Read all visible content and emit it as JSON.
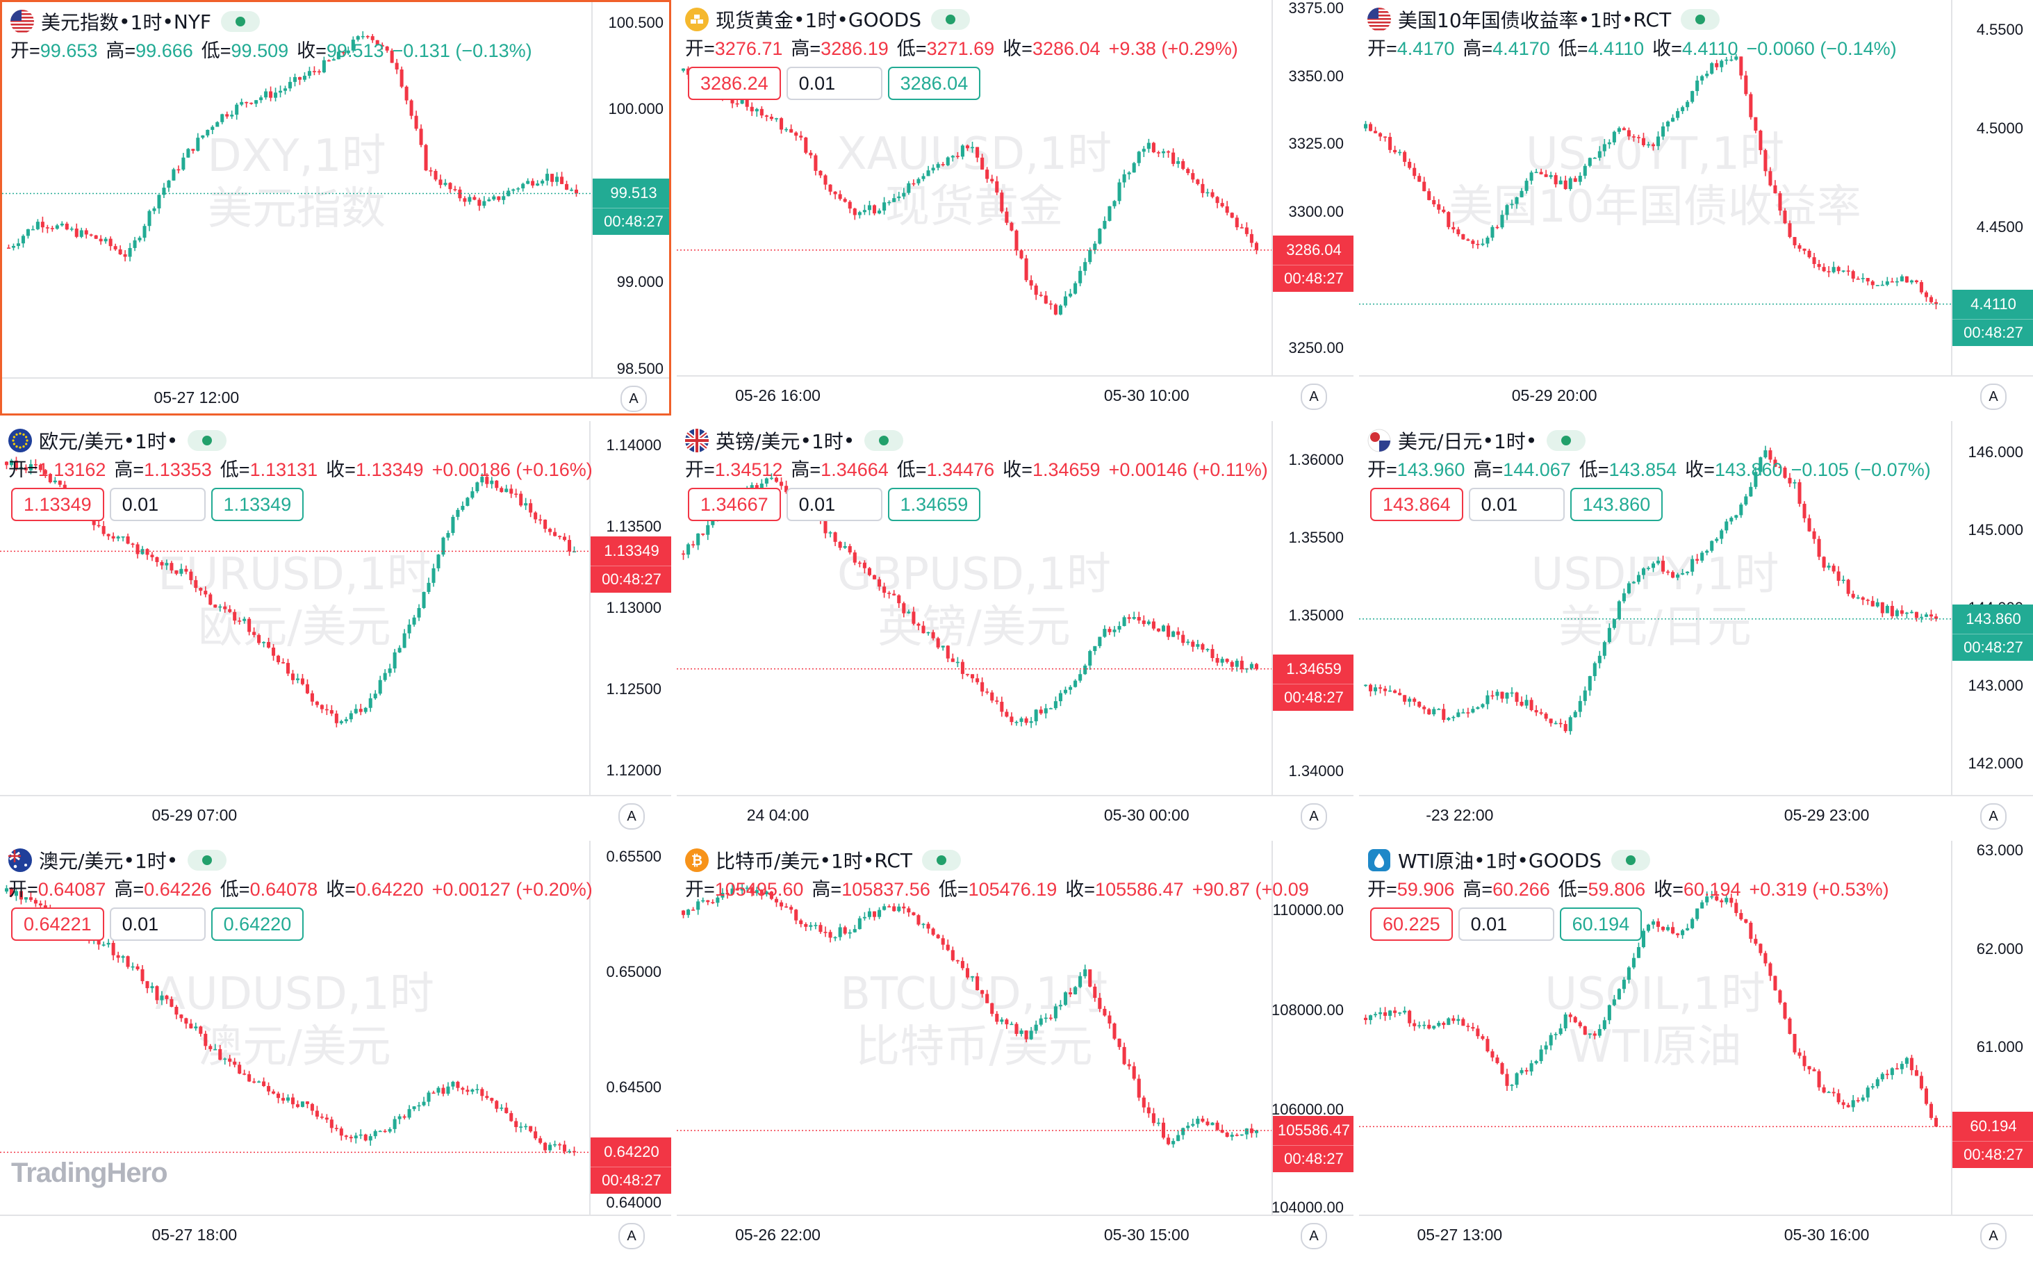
{
  "brand": "TradingHero",
  "colors": {
    "up": "#22ab94",
    "down": "#f23645",
    "active_border": "#f0602a"
  },
  "auto_label": "A",
  "ohlc_labels": {
    "open": "开=",
    "high": "高=",
    "low": "低=",
    "close": "收="
  },
  "panels": [
    {
      "symbol": "美元指数",
      "interval": "1时",
      "exchange": "NYF",
      "flag": "us-flag-icon",
      "ohlc": {
        "open": "99.653",
        "high": "99.666",
        "low": "99.509",
        "close": "99.513",
        "change": "−0.131 (−0.13%)"
      },
      "direction": "down",
      "ohlc_color": "up",
      "show_orders": false,
      "watermark": [
        "DXY,1时",
        "美元指数"
      ],
      "y_ticks": [
        "100.500",
        "100.000",
        "99.000",
        "98.500"
      ],
      "x_ticks": [
        "05-27 12:00"
      ],
      "price": "99.513",
      "countdown": "00:48:27",
      "tag_color": "up",
      "range": [
        98.45,
        100.62
      ],
      "trend": [
        99.2,
        99.35,
        99.3,
        99.25,
        99.15,
        99.5,
        99.75,
        99.95,
        100.05,
        100.1,
        100.2,
        100.3,
        100.45,
        100.25,
        99.65,
        99.5,
        99.45,
        99.55,
        99.62,
        99.51
      ],
      "active": true
    },
    {
      "symbol": "现货黄金",
      "interval": "1时",
      "exchange": "GOODS",
      "flag": "gold-coin-icon",
      "ohlc": {
        "open": "3276.71",
        "high": "3286.19",
        "low": "3271.69",
        "close": "3286.04",
        "change": "+9.38 (+0.29%)"
      },
      "direction": "up",
      "ohlc_color": "down",
      "show_orders": true,
      "sell": "3286.24",
      "qty": "0.01",
      "buy": "3286.04",
      "watermark": [
        "XAUUSD,1时",
        "现货黄金"
      ],
      "y_ticks": [
        "3375.00",
        "3350.00",
        "3325.00",
        "3300.00",
        "3250.00"
      ],
      "x_ticks": [
        "05-26 16:00",
        "05-30 10:00"
      ],
      "price": "3286.04",
      "countdown": "00:48:27",
      "tag_color": "down",
      "range": [
        3240,
        3378
      ],
      "trend": [
        3352,
        3345,
        3340,
        3335,
        3328,
        3310,
        3300,
        3302,
        3310,
        3318,
        3325,
        3305,
        3275,
        3262,
        3280,
        3305,
        3325,
        3320,
        3310,
        3298,
        3287
      ],
      "active": false
    },
    {
      "symbol": "美国10年国债收益率",
      "interval": "1时",
      "exchange": "RCT",
      "flag": "us-flag-icon",
      "ohlc": {
        "open": "4.4170",
        "high": "4.4170",
        "low": "4.4110",
        "close": "4.4110",
        "change": "−0.0060 (−0.14%)"
      },
      "direction": "down",
      "ohlc_color": "up",
      "show_orders": false,
      "watermark": [
        "US10YT,1时",
        "美国10年国债收益率"
      ],
      "y_ticks": [
        "4.5500",
        "4.5000",
        "4.4500",
        "4.4000"
      ],
      "x_ticks": [
        "05-29 20:00"
      ],
      "price": "4.4110",
      "countdown": "00:48:27",
      "tag_color": "up",
      "range": [
        4.375,
        4.565
      ],
      "trend": [
        4.5,
        4.49,
        4.47,
        4.45,
        4.44,
        4.46,
        4.48,
        4.47,
        4.485,
        4.5,
        4.49,
        4.51,
        4.53,
        4.535,
        4.48,
        4.44,
        4.43,
        4.425,
        4.42,
        4.424,
        4.411
      ],
      "active": false
    },
    {
      "symbol": "欧元/美元",
      "interval": "1时",
      "exchange": "",
      "flag": "eu-flag-icon",
      "ohlc": {
        "open": "1.13162",
        "high": "1.13353",
        "low": "1.13131",
        "close": "1.13349",
        "change": "+0.00186 (+0.16%)"
      },
      "direction": "up",
      "ohlc_color": "down",
      "show_orders": true,
      "sell": "1.13349",
      "qty": "0.01",
      "buy": "1.13349",
      "watermark": [
        "EURUSD,1时",
        "欧元/美元"
      ],
      "y_ticks": [
        "1.14000",
        "1.13500",
        "1.13000",
        "1.12500",
        "1.12000"
      ],
      "x_ticks": [
        "05-29 07:00"
      ],
      "price": "1.13349",
      "countdown": "00:48:27",
      "tag_color": "down",
      "range": [
        1.1185,
        1.1415
      ],
      "trend": [
        1.139,
        1.1385,
        1.137,
        1.135,
        1.134,
        1.133,
        1.132,
        1.13,
        1.129,
        1.127,
        1.125,
        1.123,
        1.124,
        1.127,
        1.131,
        1.136,
        1.138,
        1.137,
        1.135,
        1.1335
      ],
      "active": false
    },
    {
      "symbol": "英镑/美元",
      "interval": "1时",
      "exchange": "",
      "flag": "uk-flag-icon",
      "ohlc": {
        "open": "1.34512",
        "high": "1.34664",
        "low": "1.34476",
        "close": "1.34659",
        "change": "+0.00146 (+0.11%)"
      },
      "direction": "up",
      "ohlc_color": "down",
      "show_orders": true,
      "sell": "1.34667",
      "qty": "0.01",
      "buy": "1.34659",
      "watermark": [
        "GBPUSD,1时",
        "英镑/美元"
      ],
      "y_ticks": [
        "1.36000",
        "1.35500",
        "1.35000",
        "1.34000"
      ],
      "x_ticks": [
        "24 04:00",
        "05-30 00:00"
      ],
      "price": "1.34659",
      "countdown": "00:48:27",
      "tag_color": "down",
      "range": [
        1.3385,
        1.3625
      ],
      "trend": [
        1.354,
        1.356,
        1.358,
        1.359,
        1.357,
        1.355,
        1.353,
        1.351,
        1.349,
        1.347,
        1.345,
        1.343,
        1.344,
        1.346,
        1.349,
        1.35,
        1.349,
        1.348,
        1.347,
        1.3466
      ],
      "active": false
    },
    {
      "symbol": "美元/日元",
      "interval": "1时",
      "exchange": "",
      "flag": "jp-flag-icon",
      "ohlc": {
        "open": "143.960",
        "high": "144.067",
        "low": "143.854",
        "close": "143.860",
        "change": "−0.105 (−0.07%)"
      },
      "direction": "down",
      "ohlc_color": "up",
      "show_orders": true,
      "sell": "143.864",
      "qty": "0.01",
      "buy": "143.860",
      "watermark": [
        "USDJPY,1时",
        "美元/日元"
      ],
      "y_ticks": [
        "146.000",
        "145.000",
        "144.000",
        "143.000",
        "142.000"
      ],
      "x_ticks": [
        "-23 22:00",
        "05-29 23:00"
      ],
      "price": "143.860",
      "countdown": "00:48:27",
      "tag_color": "up",
      "range": [
        141.6,
        146.4
      ],
      "trend": [
        143,
        142.9,
        142.7,
        142.6,
        142.8,
        142.9,
        142.7,
        142.4,
        143.2,
        144.2,
        144.6,
        144.4,
        144.8,
        145.2,
        146,
        145.6,
        144.6,
        144.2,
        144,
        143.9,
        143.86
      ],
      "active": false
    },
    {
      "symbol": "澳元/美元",
      "interval": "1时",
      "exchange": "",
      "flag": "au-flag-icon",
      "ohlc": {
        "open": "0.64087",
        "high": "0.64226",
        "low": "0.64078",
        "close": "0.64220",
        "change": "+0.00127 (+0.20%)"
      },
      "direction": "up",
      "ohlc_color": "down",
      "show_orders": true,
      "sell": "0.64221",
      "qty": "0.01",
      "buy": "0.64220",
      "watermark": [
        "AUDUSD,1时",
        "澳元/美元"
      ],
      "y_ticks": [
        "0.65500",
        "0.65000",
        "0.64500",
        "0.64000"
      ],
      "x_ticks": [
        "05-27 18:00"
      ],
      "price": "0.64220",
      "countdown": "00:48:27",
      "tag_color": "down",
      "range": [
        0.6395,
        0.6557
      ],
      "trend": [
        0.6535,
        0.653,
        0.652,
        0.6515,
        0.6505,
        0.649,
        0.648,
        0.6465,
        0.6455,
        0.6448,
        0.6442,
        0.6432,
        0.6428,
        0.6435,
        0.6445,
        0.6452,
        0.6448,
        0.6435,
        0.6425,
        0.6422
      ],
      "active": false
    },
    {
      "symbol": "比特币/美元",
      "interval": "1时",
      "exchange": "RCT",
      "flag": "bitcoin-icon",
      "ohlc": {
        "open": "105495.60",
        "high": "105837.56",
        "low": "105476.19",
        "close": "105586.47",
        "change": "+90.87 (+0.09"
      },
      "direction": "up",
      "ohlc_color": "down",
      "show_orders": false,
      "watermark": [
        "BTCUSD,1时",
        "比特币/美元"
      ],
      "y_ticks": [
        "110000.00",
        "108000.00",
        "106000.00",
        "104000.00"
      ],
      "x_ticks": [
        "05-26 22:00",
        "05-30 15:00"
      ],
      "price": "105586.47",
      "countdown": "00:48:27",
      "tag_color": "down",
      "range": [
        103900,
        111400
      ],
      "trend": [
        110000,
        110200,
        110500,
        110300,
        109800,
        109500,
        109700,
        110100,
        109900,
        109300,
        108700,
        107800,
        107500,
        108000,
        108800,
        107500,
        106200,
        105300,
        105900,
        105500,
        105586
      ],
      "active": false
    },
    {
      "symbol": "WTI原油",
      "interval": "1时",
      "exchange": "GOODS",
      "flag": "oil-icon",
      "ohlc": {
        "open": "59.906",
        "high": "60.266",
        "low": "59.806",
        "close": "60.194",
        "change": "+0.319 (+0.53%)"
      },
      "direction": "up",
      "ohlc_color": "down",
      "show_orders": true,
      "sell": "60.225",
      "qty": "0.01",
      "buy": "60.194",
      "watermark": [
        "USOIL,1时",
        "WTI原油"
      ],
      "y_ticks": [
        "63.000",
        "62.000",
        "61.000"
      ],
      "x_ticks": [
        "05-27 13:00",
        "05-30 16:00"
      ],
      "price": "60.194",
      "countdown": "00:48:27",
      "tag_color": "down",
      "range": [
        59.3,
        63.1
      ],
      "trend": [
        61.3,
        61.4,
        61.2,
        61.3,
        61.1,
        60.6,
        60.9,
        61.3,
        61.1,
        61.7,
        62.3,
        62.1,
        62.6,
        62.4,
        61.9,
        61,
        60.6,
        60.4,
        60.7,
        60.9,
        60.2
      ],
      "active": false
    }
  ]
}
